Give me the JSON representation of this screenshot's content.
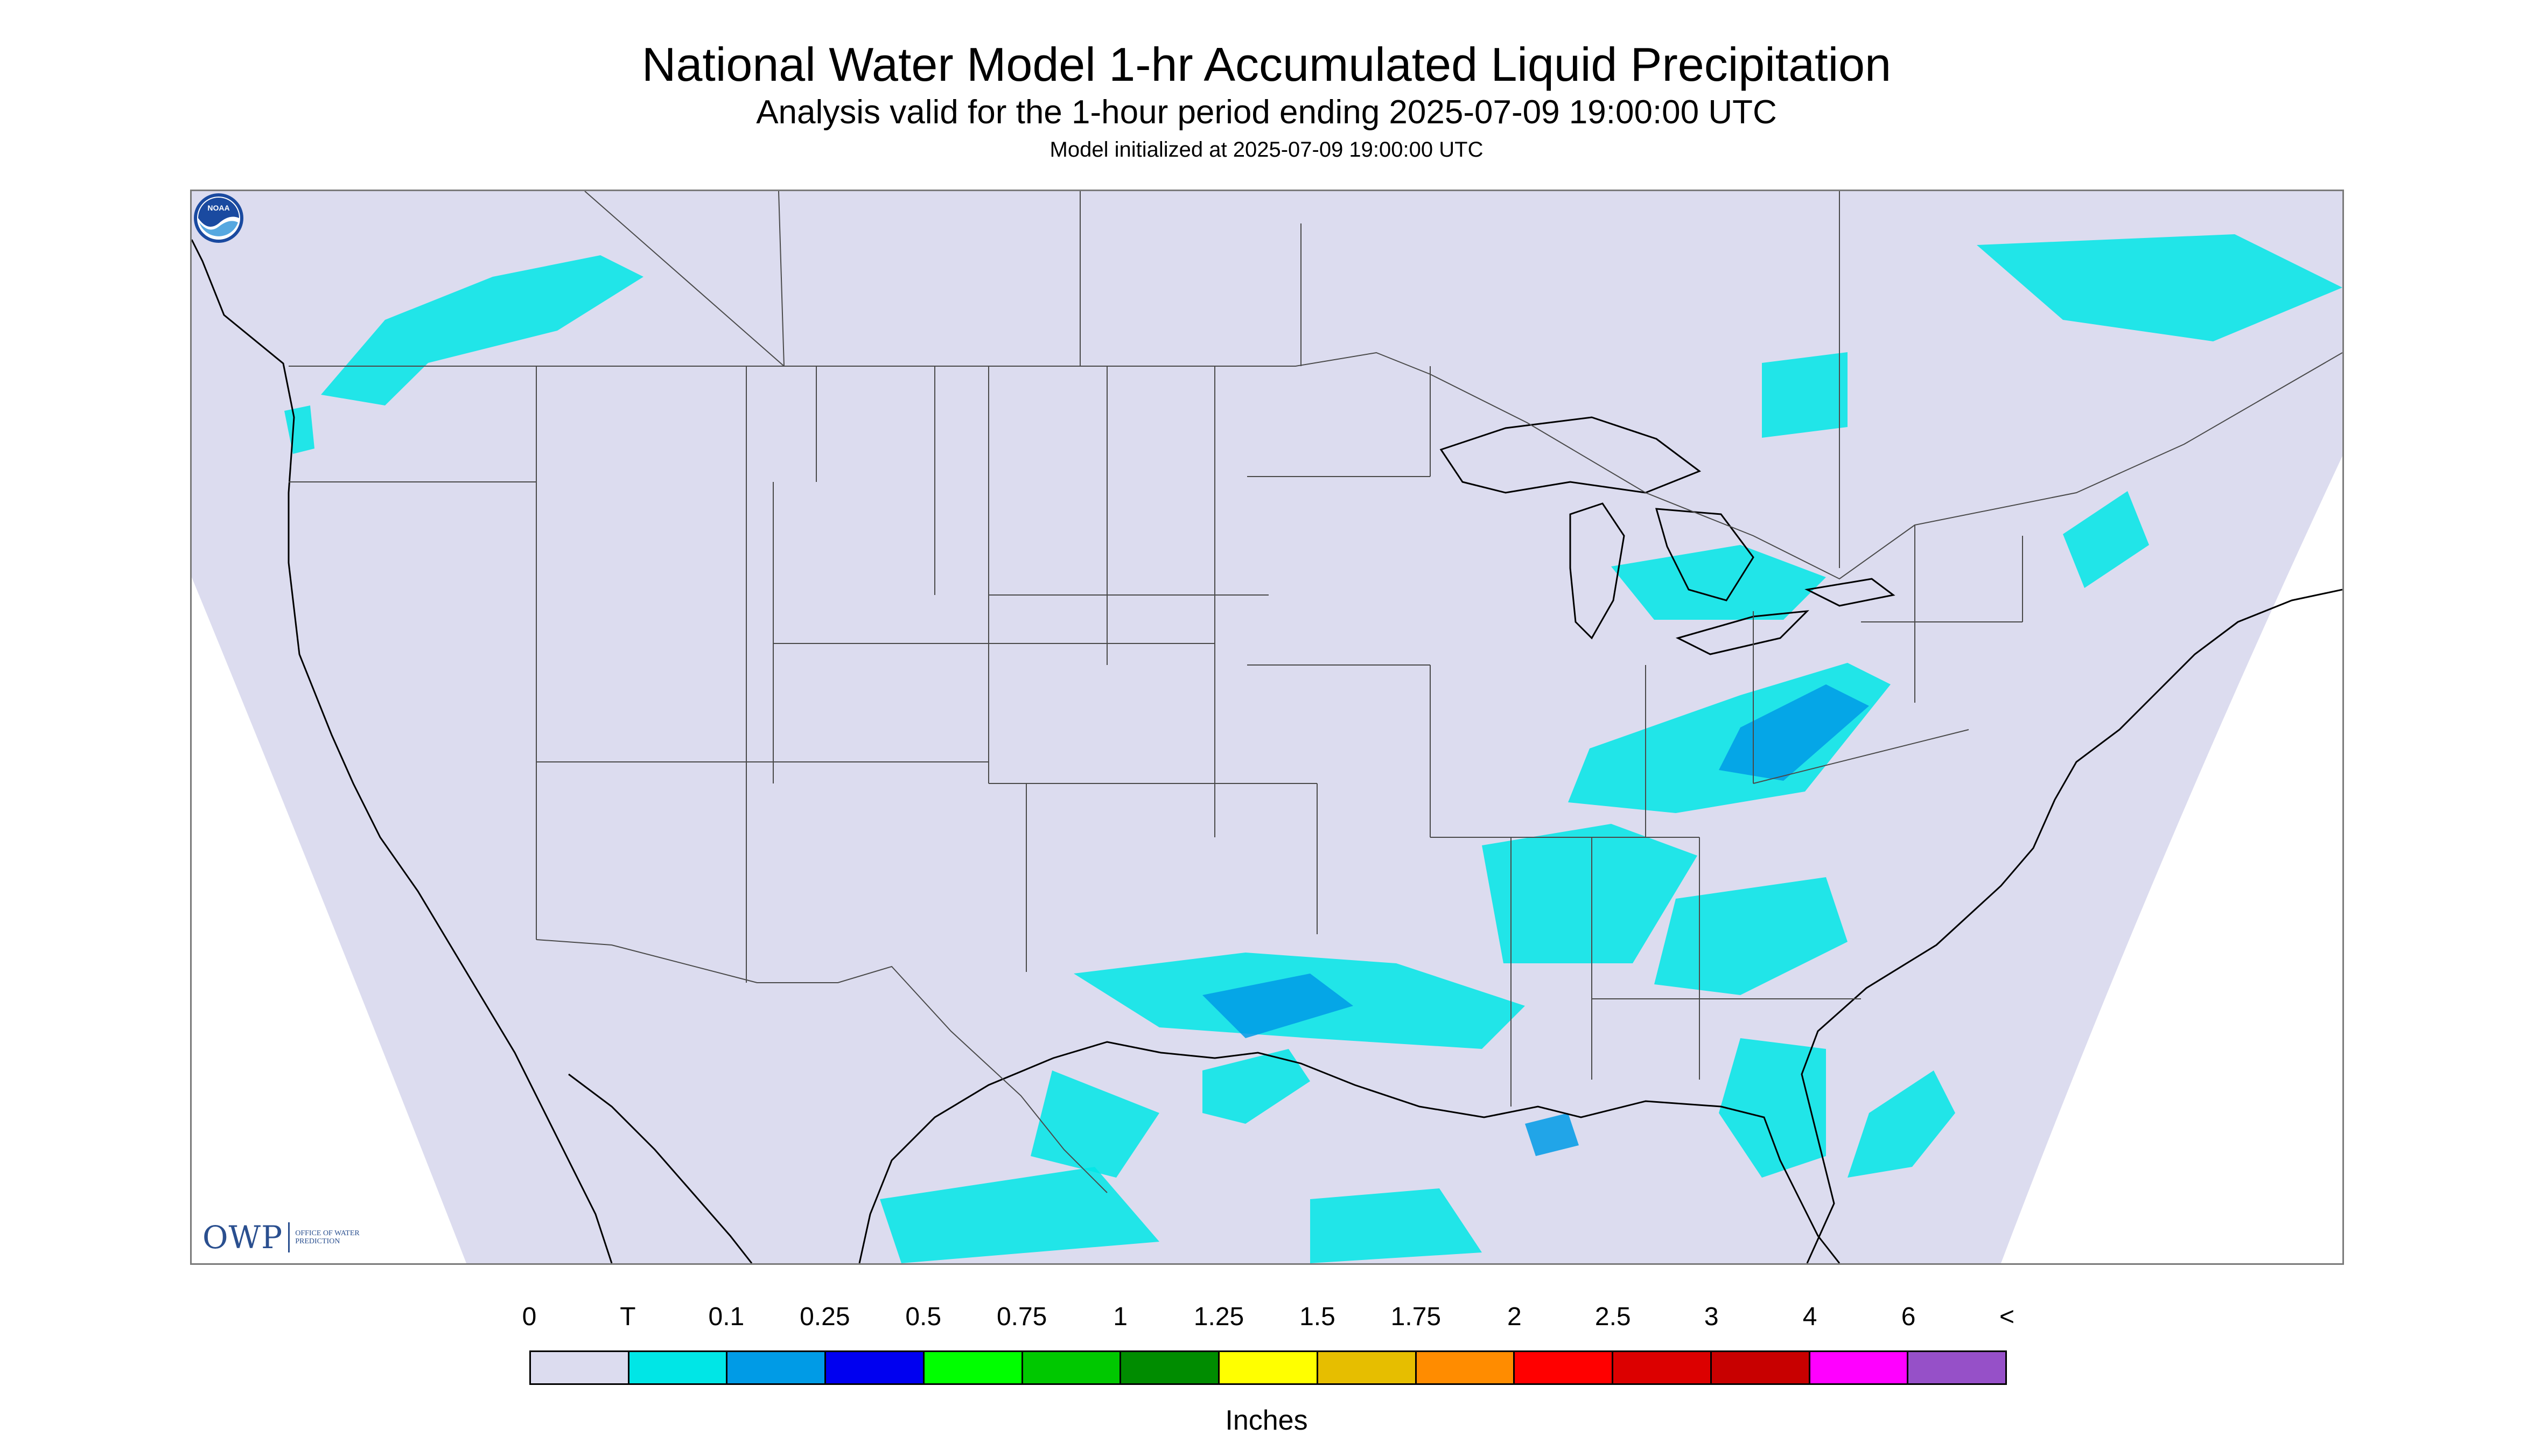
{
  "title": "National Water Model 1-hr Accumulated Liquid Precipitation",
  "subtitle": "Analysis valid for the 1-hour period ending 2025-07-09 19:00:00 UTC",
  "init_text": "Model initialized at 2025-07-09 19:00:00 UTC",
  "units": "Inches",
  "colors": {
    "domain_fill": "#dcdcef",
    "outside_fill": "#ffffff",
    "border_line": "#4a4a4a",
    "coast_line": "#000000"
  },
  "logos": {
    "owp_mark": "OWP",
    "owp_name": "Office of Water Prediction",
    "noaa_text": "NOAA"
  },
  "legend": {
    "labels": [
      "0",
      "T",
      "0.1",
      "0.25",
      "0.5",
      "0.75",
      "1",
      "1.25",
      "1.5",
      "1.75",
      "2",
      "2.5",
      "3",
      "4",
      "6",
      "<"
    ],
    "colors": [
      "#dcdcef",
      "#00e6e6",
      "#009be6",
      "#0000f0",
      "#00ff00",
      "#00c800",
      "#008c00",
      "#ffff00",
      "#e6be00",
      "#ff8c00",
      "#ff0000",
      "#dc0000",
      "#c80000",
      "#ff00ff",
      "#9650c8"
    ]
  },
  "precip_regions": [
    {
      "name": "pacific-northwest-bc",
      "color": "#00e6e6",
      "points": [
        [
          0.06,
          0.19
        ],
        [
          0.09,
          0.12
        ],
        [
          0.14,
          0.08
        ],
        [
          0.19,
          0.06
        ],
        [
          0.21,
          0.08
        ],
        [
          0.17,
          0.13
        ],
        [
          0.11,
          0.16
        ],
        [
          0.09,
          0.2
        ]
      ]
    },
    {
      "name": "washington-coast",
      "color": "#00e6e6",
      "points": [
        [
          0.043,
          0.205
        ],
        [
          0.055,
          0.2
        ],
        [
          0.057,
          0.24
        ],
        [
          0.047,
          0.245
        ]
      ]
    },
    {
      "name": "great-lakes-michigan",
      "color": "#00e6e6",
      "points": [
        [
          0.66,
          0.35
        ],
        [
          0.72,
          0.33
        ],
        [
          0.76,
          0.36
        ],
        [
          0.74,
          0.4
        ],
        [
          0.68,
          0.4
        ]
      ]
    },
    {
      "name": "ontario-north",
      "color": "#00e6e6",
      "points": [
        [
          0.73,
          0.16
        ],
        [
          0.77,
          0.15
        ],
        [
          0.77,
          0.22
        ],
        [
          0.73,
          0.23
        ]
      ]
    },
    {
      "name": "quebec-north",
      "color": "#00e6e6",
      "points": [
        [
          0.83,
          0.05
        ],
        [
          0.95,
          0.04
        ],
        [
          1.0,
          0.09
        ],
        [
          0.94,
          0.14
        ],
        [
          0.87,
          0.12
        ]
      ]
    },
    {
      "name": "ohio-valley-appalachia",
      "color": "#00e6e6",
      "points": [
        [
          0.65,
          0.52
        ],
        [
          0.72,
          0.47
        ],
        [
          0.77,
          0.44
        ],
        [
          0.79,
          0.46
        ],
        [
          0.75,
          0.56
        ],
        [
          0.69,
          0.58
        ],
        [
          0.64,
          0.57
        ]
      ]
    },
    {
      "name": "mid-atlantic-core",
      "color": "#009be6",
      "points": [
        [
          0.72,
          0.5
        ],
        [
          0.76,
          0.46
        ],
        [
          0.78,
          0.48
        ],
        [
          0.74,
          0.55
        ],
        [
          0.71,
          0.54
        ]
      ]
    },
    {
      "name": "tennessee-alabama",
      "color": "#00e6e6",
      "points": [
        [
          0.6,
          0.61
        ],
        [
          0.66,
          0.59
        ],
        [
          0.7,
          0.62
        ],
        [
          0.67,
          0.72
        ],
        [
          0.61,
          0.72
        ]
      ]
    },
    {
      "name": "georgia-carolinas",
      "color": "#00e6e6",
      "points": [
        [
          0.69,
          0.66
        ],
        [
          0.76,
          0.64
        ],
        [
          0.77,
          0.7
        ],
        [
          0.72,
          0.75
        ],
        [
          0.68,
          0.74
        ]
      ]
    },
    {
      "name": "gulf-coast",
      "color": "#00e6e6",
      "points": [
        [
          0.41,
          0.73
        ],
        [
          0.49,
          0.71
        ],
        [
          0.56,
          0.72
        ],
        [
          0.62,
          0.76
        ],
        [
          0.6,
          0.8
        ],
        [
          0.52,
          0.79
        ],
        [
          0.45,
          0.78
        ]
      ]
    },
    {
      "name": "gulf-coast-core",
      "color": "#009be6",
      "points": [
        [
          0.47,
          0.75
        ],
        [
          0.52,
          0.73
        ],
        [
          0.54,
          0.76
        ],
        [
          0.49,
          0.79
        ]
      ]
    },
    {
      "name": "texas-coast",
      "color": "#00e6e6",
      "points": [
        [
          0.47,
          0.82
        ],
        [
          0.51,
          0.8
        ],
        [
          0.52,
          0.83
        ],
        [
          0.49,
          0.87
        ],
        [
          0.47,
          0.86
        ]
      ]
    },
    {
      "name": "florida-peninsula",
      "color": "#00e6e6",
      "points": [
        [
          0.72,
          0.79
        ],
        [
          0.76,
          0.8
        ],
        [
          0.76,
          0.9
        ],
        [
          0.73,
          0.92
        ],
        [
          0.71,
          0.86
        ]
      ]
    },
    {
      "name": "bahamas",
      "color": "#00e6e6",
      "points": [
        [
          0.78,
          0.86
        ],
        [
          0.81,
          0.82
        ],
        [
          0.82,
          0.86
        ],
        [
          0.8,
          0.91
        ],
        [
          0.77,
          0.92
        ]
      ]
    },
    {
      "name": "mexico-south",
      "color": "#00e6e6",
      "points": [
        [
          0.32,
          0.94
        ],
        [
          0.42,
          0.91
        ],
        [
          0.45,
          0.98
        ],
        [
          0.33,
          1.0
        ]
      ]
    },
    {
      "name": "gulf-south",
      "color": "#00e6e6",
      "points": [
        [
          0.52,
          0.94
        ],
        [
          0.58,
          0.93
        ],
        [
          0.6,
          0.99
        ],
        [
          0.52,
          1.0
        ]
      ]
    },
    {
      "name": "mexico-sierra",
      "color": "#00e6e6",
      "points": [
        [
          0.4,
          0.82
        ],
        [
          0.45,
          0.86
        ],
        [
          0.43,
          0.92
        ],
        [
          0.39,
          0.9
        ]
      ]
    },
    {
      "name": "gulf-cell",
      "color": "#009be6",
      "points": [
        [
          0.62,
          0.87
        ],
        [
          0.64,
          0.86
        ],
        [
          0.645,
          0.89
        ],
        [
          0.625,
          0.9
        ]
      ]
    },
    {
      "name": "new-england",
      "color": "#00e6e6",
      "points": [
        [
          0.87,
          0.32
        ],
        [
          0.9,
          0.28
        ],
        [
          0.91,
          0.33
        ],
        [
          0.88,
          0.37
        ]
      ]
    }
  ]
}
